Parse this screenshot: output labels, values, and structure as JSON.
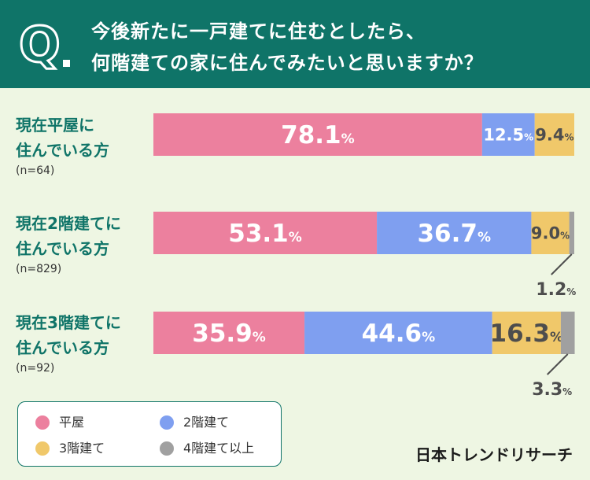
{
  "header": {
    "q_letter": "Q",
    "title_line1": "今後新たに一戸建てに住むとしたら、",
    "title_line2": "何階建ての家に住んでみたいと思いますか？"
  },
  "brand": "日本トレンドリサーチ",
  "colors": {
    "header_bg": "#0f7468",
    "background": "#eef6e3",
    "one_story": "#ec809e",
    "two_story": "#7f9ff0",
    "three_story": "#f0c86a",
    "four_plus": "#a0a0a0"
  },
  "legend": [
    {
      "label": "平屋",
      "color": "#ec809e"
    },
    {
      "label": "2階建て",
      "color": "#7f9ff0"
    },
    {
      "label": "3階建て",
      "color": "#f0c86a"
    },
    {
      "label": "4階建て以上",
      "color": "#a0a0a0"
    }
  ],
  "chart_data": {
    "type": "bar",
    "orientation": "horizontal-stacked-100",
    "categories": [
      {
        "line1": "現在平屋に",
        "line2": "住んでいる方",
        "n": "(n=64)"
      },
      {
        "line1": "現在2階建てに",
        "line2": "住んでいる方",
        "n": "(n=829)"
      },
      {
        "line1": "現在3階建てに",
        "line2": "住んでいる方",
        "n": "(n=92)"
      }
    ],
    "series": [
      {
        "name": "平屋",
        "values": [
          78.1,
          53.1,
          35.9
        ]
      },
      {
        "name": "2階建て",
        "values": [
          12.5,
          36.7,
          44.6
        ]
      },
      {
        "name": "3階建て",
        "values": [
          9.4,
          9.0,
          16.3
        ]
      },
      {
        "name": "4階建て以上",
        "values": [
          0,
          1.2,
          3.3
        ]
      }
    ],
    "value_labels": [
      [
        "78.1",
        "12.5",
        "9.4",
        ""
      ],
      [
        "53.1",
        "36.7",
        "9.0",
        "1.2"
      ],
      [
        "35.9",
        "44.6",
        "16.3",
        "3.3"
      ]
    ],
    "unit": "%",
    "xlim": [
      0,
      100
    ]
  }
}
